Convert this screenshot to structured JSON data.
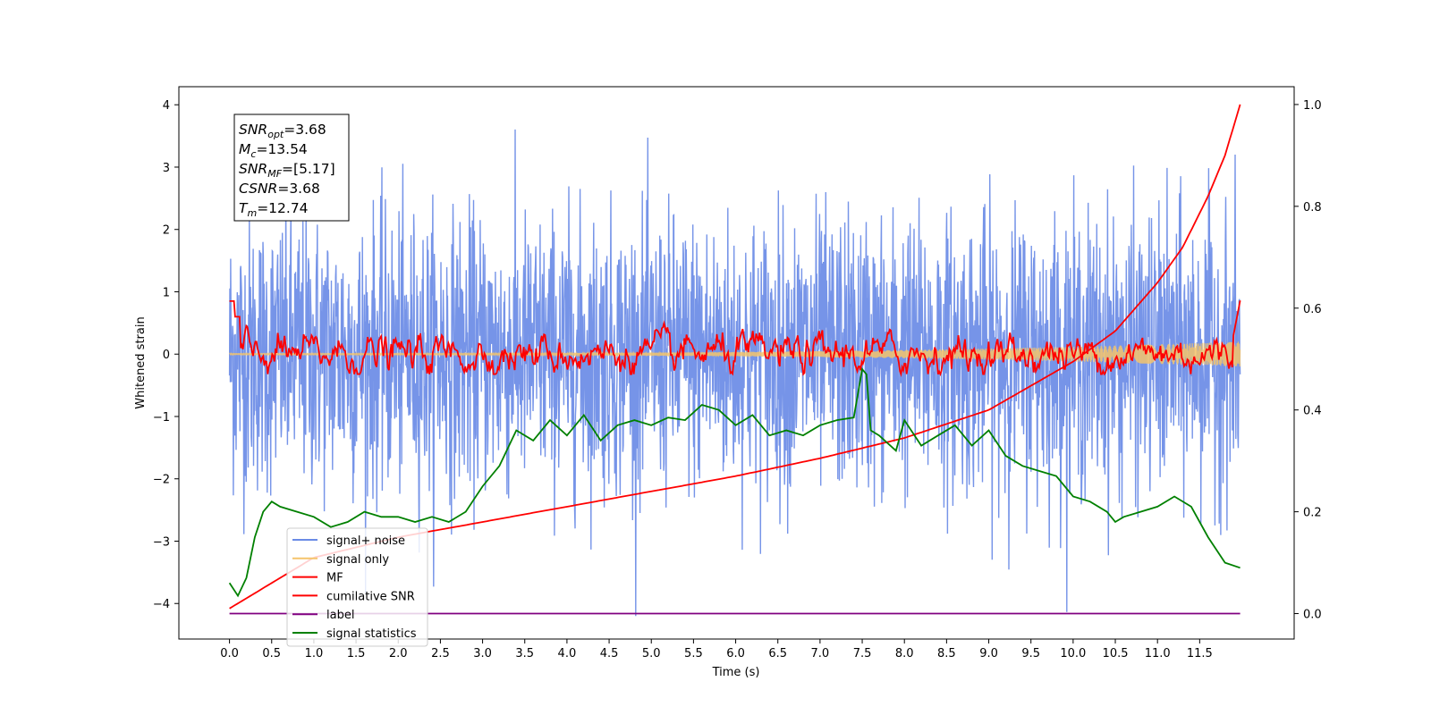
{
  "chart_data": {
    "type": "line",
    "xlabel": "Time (s)",
    "ylabel": "Whitened strain",
    "xlim": [
      -0.6,
      12.62
    ],
    "ylim_left": [
      -4.57,
      4.29
    ],
    "ylim_right": [
      -0.05,
      1.035
    ],
    "x_ticks": [
      "0.0",
      "0.5",
      "1.0",
      "1.5",
      "2.0",
      "2.5",
      "3.0",
      "3.5",
      "4.0",
      "4.5",
      "5.0",
      "5.5",
      "6.0",
      "6.5",
      "7.0",
      "7.5",
      "8.0",
      "8.5",
      "9.0",
      "9.5",
      "10.0",
      "10.5",
      "11.0",
      "11.5"
    ],
    "y_ticks_left": [
      "4",
      "3",
      "2",
      "1",
      "0",
      "−1",
      "−2",
      "−3",
      "−4"
    ],
    "y_ticks_right": [
      "1.0",
      "0.8",
      "0.6",
      "0.4",
      "0.2",
      "0.0"
    ],
    "legend_position": "lower-left",
    "series": [
      {
        "name": "signal+ noise",
        "color": "#6a8be6",
        "axis": "left",
        "noise_std": 1.1,
        "x_range": [
          0,
          11.98
        ]
      },
      {
        "name": "signal only",
        "color": "#f5c46b",
        "axis": "left",
        "envelope_start": 0.01,
        "envelope_end": 0.2
      },
      {
        "name": "MF",
        "color": "#ff0000",
        "axis": "left"
      },
      {
        "name": "cumilative SNR",
        "color": "#ff0000",
        "axis": "right",
        "x": [
          0,
          1,
          2,
          3,
          4,
          5,
          6,
          7,
          8,
          9,
          10,
          10.5,
          11,
          11.3,
          11.6,
          11.8,
          11.98
        ],
        "y": [
          0.01,
          0.11,
          0.15,
          0.18,
          0.21,
          0.24,
          0.27,
          0.305,
          0.345,
          0.4,
          0.495,
          0.555,
          0.65,
          0.72,
          0.82,
          0.9,
          1.0
        ]
      },
      {
        "name": "label",
        "color": "#800080",
        "axis": "right",
        "x": [
          0,
          11.98
        ],
        "y": [
          0.0,
          0.0
        ]
      },
      {
        "name": "signal statistics",
        "color": "#008000",
        "axis": "right",
        "x": [
          0,
          0.1,
          0.2,
          0.3,
          0.4,
          0.5,
          0.6,
          0.8,
          1.0,
          1.2,
          1.4,
          1.6,
          1.8,
          2.0,
          2.2,
          2.4,
          2.6,
          2.8,
          3.0,
          3.2,
          3.4,
          3.6,
          3.8,
          4.0,
          4.2,
          4.4,
          4.6,
          4.8,
          5.0,
          5.2,
          5.4,
          5.6,
          5.8,
          6.0,
          6.2,
          6.4,
          6.6,
          6.8,
          7.0,
          7.2,
          7.4,
          7.5,
          7.55,
          7.6,
          7.7,
          7.9,
          8.0,
          8.2,
          8.4,
          8.6,
          8.8,
          9.0,
          9.2,
          9.4,
          9.6,
          9.8,
          10.0,
          10.2,
          10.4,
          10.5,
          10.6,
          10.8,
          11.0,
          11.2,
          11.4,
          11.6,
          11.8,
          11.98
        ],
        "y": [
          0.06,
          0.035,
          0.07,
          0.15,
          0.2,
          0.22,
          0.21,
          0.2,
          0.19,
          0.17,
          0.18,
          0.2,
          0.19,
          0.19,
          0.18,
          0.19,
          0.18,
          0.2,
          0.25,
          0.29,
          0.36,
          0.34,
          0.38,
          0.35,
          0.39,
          0.34,
          0.37,
          0.38,
          0.37,
          0.385,
          0.38,
          0.41,
          0.4,
          0.37,
          0.39,
          0.35,
          0.36,
          0.35,
          0.37,
          0.38,
          0.385,
          0.48,
          0.47,
          0.36,
          0.35,
          0.32,
          0.38,
          0.33,
          0.35,
          0.37,
          0.33,
          0.36,
          0.31,
          0.29,
          0.28,
          0.27,
          0.23,
          0.22,
          0.2,
          0.18,
          0.19,
          0.2,
          0.21,
          0.23,
          0.21,
          0.15,
          0.1,
          0.09
        ]
      }
    ],
    "annotations": [
      {
        "base": "SNR",
        "sub": "opt",
        "value": "=3.68"
      },
      {
        "base": "M",
        "sub": "c",
        "value": "=13.54"
      },
      {
        "base": "SNR",
        "sub": "MF",
        "value": "=[5.17]"
      },
      {
        "base": "CSNR",
        "sub": "",
        "value": "=3.68"
      },
      {
        "base": "T",
        "sub": "m",
        "value": "=12.74"
      }
    ]
  }
}
